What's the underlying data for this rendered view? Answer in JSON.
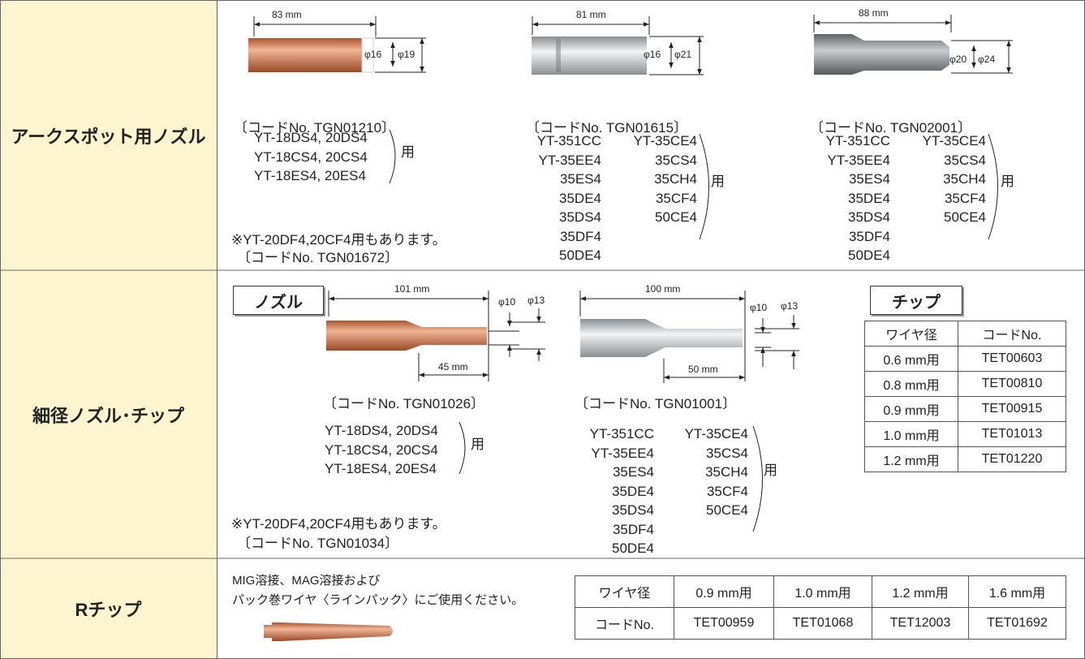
{
  "section1": {
    "label": "アークスポット用ノズル",
    "parts": [
      {
        "length": "83 mm",
        "inner": "φ16",
        "outer": "φ19",
        "code": "〔コードNo. TGN01210〕",
        "models": [
          "YT-18DS4, 20DS4",
          "YT-18CS4, 20CS4",
          "YT-18ES4, 20ES4"
        ],
        "use": "用"
      },
      {
        "length": "81 mm",
        "inner": "φ16",
        "outer": "φ21",
        "code": "〔コードNo. TGN01615〕",
        "models_left": [
          "YT-351CC",
          "YT-35EE4",
          "35ES4",
          "35DE4",
          "35DS4",
          "35DF4",
          "50DE4"
        ],
        "models_right": [
          "YT-35CE4",
          "35CS4",
          "35CH4",
          "35CF4",
          "50CE4"
        ],
        "use": "用"
      },
      {
        "length": "88 mm",
        "inner": "φ20",
        "outer": "φ24",
        "code": "〔コードNo. TGN02001〕",
        "models_left": [
          "YT-351CC",
          "YT-35EE4",
          "35ES4",
          "35DE4",
          "35DS4",
          "35DF4",
          "50DE4"
        ],
        "models_right": [
          "YT-35CE4",
          "35CS4",
          "35CH4",
          "35CF4",
          "50CE4"
        ],
        "use": "用"
      }
    ],
    "note": "※YT-20DF4,20CF4用もあります。",
    "note_code": "〔コードNo. TGN01672〕"
  },
  "section2": {
    "label": "細径ノズル･チップ",
    "nozzle_tag": "ノズル",
    "parts": [
      {
        "length": "101 mm",
        "tip_length": "45 mm",
        "inner": "φ10",
        "outer": "φ13",
        "code": "〔コードNo. TGN01026〕",
        "models": [
          "YT-18DS4, 20DS4",
          "YT-18CS4, 20CS4",
          "YT-18ES4, 20ES4"
        ],
        "use": "用"
      },
      {
        "length": "100 mm",
        "tip_length": "50 mm",
        "inner": "φ10",
        "outer": "φ13",
        "code": "〔コードNo. TGN01001〕",
        "models_left": [
          "YT-351CC",
          "YT-35EE4",
          "35ES4",
          "35DE4",
          "35DS4",
          "35DF4",
          "50DE4"
        ],
        "models_right": [
          "YT-35CE4",
          "35CS4",
          "35CH4",
          "35CF4",
          "50CE4"
        ],
        "use": "用"
      }
    ],
    "note": "※YT-20DF4,20CF4用もあります。",
    "note_code": "〔コードNo. TGN01034〕",
    "chip_tag": "チップ",
    "chip_table": {
      "header": [
        "ワイヤ径",
        "コードNo."
      ],
      "rows": [
        [
          "0.6 mm用",
          "TET00603"
        ],
        [
          "0.8 mm用",
          "TET00810"
        ],
        [
          "0.9 mm用",
          "TET00915"
        ],
        [
          "1.0 mm用",
          "TET01013"
        ],
        [
          "1.2 mm用",
          "TET01220"
        ]
      ]
    }
  },
  "section3": {
    "label": "Rチップ",
    "description": [
      "MIG溶接、MAG溶接および",
      "パック巻ワイヤ〈ラインパック〉にご使用ください。"
    ],
    "table": {
      "rows": [
        [
          "ワイヤ径",
          "0.9 mm用",
          "1.0 mm用",
          "1.2 mm用",
          "1.6 mm用"
        ],
        [
          "コードNo.",
          "TET00959",
          "TET01068",
          "TET12003",
          "TET01692"
        ]
      ]
    }
  }
}
